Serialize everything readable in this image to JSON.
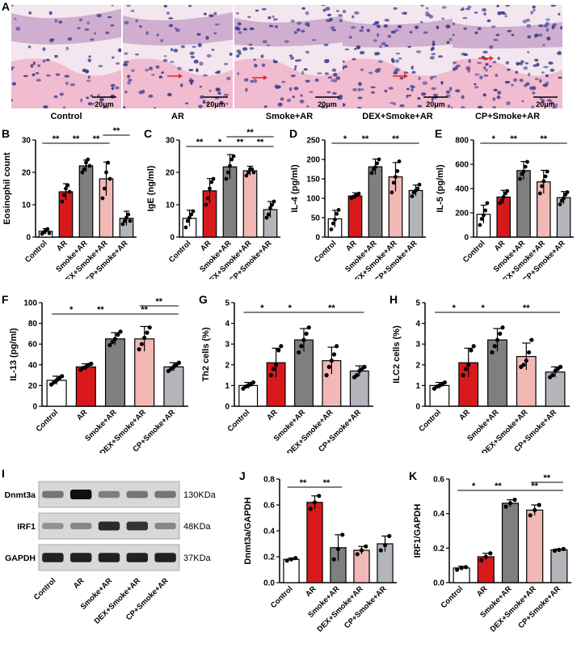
{
  "panel_labels": [
    "A",
    "B",
    "C",
    "D",
    "E",
    "F",
    "G",
    "H",
    "I",
    "J",
    "K"
  ],
  "histology": {
    "scale_label": "20μm",
    "groups": [
      "Control",
      "AR",
      "Smoke+AR",
      "DEX+Smoke+AR",
      "CP+Smoke+AR"
    ]
  },
  "colors": {
    "Control": "#ffffff",
    "AR": "#d7191c",
    "Smoke+AR": "#7f7f7f",
    "DEX+Smoke+AR": "#f2b8b5",
    "CP+Smoke+AR": "#b4b4bb",
    "stain_pink": "#f1b6cc",
    "stain_nuclei": "#3a3f8f"
  },
  "blot": {
    "rows": [
      {
        "name": "Dnmt3a",
        "size": "130KDa"
      },
      {
        "name": "IRF1",
        "size": "48KDa"
      },
      {
        "name": "GAPDH",
        "size": "37KDa"
      }
    ],
    "intensity": [
      [
        0.45,
        1.0,
        0.4,
        0.45,
        0.45
      ],
      [
        0.3,
        0.35,
        0.85,
        0.8,
        0.35
      ],
      [
        0.9,
        0.9,
        0.9,
        0.9,
        0.9
      ]
    ],
    "lanes": [
      "Control",
      "AR",
      "Smoke+AR",
      "DEX+Smoke+AR",
      "CP+Smoke+AR"
    ]
  },
  "chart_data": [
    {
      "id": "B",
      "type": "bar",
      "ylabel": "Eosinophil count",
      "ylim": [
        0,
        30
      ],
      "yticks": [
        0,
        10,
        20,
        30
      ],
      "categories": [
        "Control",
        "AR",
        "Smoke+AR",
        "DEX+Smoke+AR",
        "CP+Smoke+AR"
      ],
      "values": [
        1.8,
        14,
        22,
        18,
        5.8
      ],
      "errors": [
        0.8,
        2.5,
        1.8,
        5.2,
        2.2
      ],
      "points": [
        [
          1,
          1.5,
          2,
          2.5,
          1.2
        ],
        [
          11,
          13,
          15,
          16,
          14
        ],
        [
          20,
          21,
          23,
          24,
          22
        ],
        [
          12,
          15,
          20,
          23,
          18
        ],
        [
          4,
          5,
          6,
          7,
          5
        ]
      ],
      "sig": [
        {
          "a": 0,
          "b": 1,
          "l": 1,
          "t": "**"
        },
        {
          "a": 1,
          "b": 2,
          "l": 1,
          "t": "**"
        },
        {
          "a": 2,
          "b": 3,
          "l": 1,
          "t": "**"
        },
        {
          "a": 3,
          "b": 4,
          "l": 2,
          "t": "**"
        }
      ]
    },
    {
      "id": "C",
      "type": "bar",
      "ylabel": "IgE (ng/ml)",
      "ylim": [
        0,
        30
      ],
      "yticks": [
        0,
        10,
        20,
        30
      ],
      "categories": [
        "Control",
        "AR",
        "Smoke+AR",
        "DEX+Smoke+AR",
        "CP+Smoke+AR"
      ],
      "values": [
        5.8,
        14.3,
        21.7,
        20.5,
        8.5
      ],
      "errors": [
        2.5,
        3.8,
        3.8,
        1.4,
        2.5
      ],
      "points": [
        [
          3,
          5,
          6,
          7,
          8
        ],
        [
          10,
          12,
          15,
          17,
          18
        ],
        [
          18,
          20,
          22,
          24,
          25
        ],
        [
          19,
          20,
          21,
          21,
          20
        ],
        [
          6,
          7,
          9,
          10,
          11
        ]
      ],
      "sig": [
        {
          "a": 0,
          "b": 1,
          "l": 1,
          "t": "**"
        },
        {
          "a": 1,
          "b": 2,
          "l": 1,
          "t": "*"
        },
        {
          "a": 2,
          "b": 3,
          "l": 1,
          "t": "**"
        },
        {
          "a": 2,
          "b": 4,
          "l": 2,
          "t": "**"
        },
        {
          "a": 3,
          "b": 4,
          "l": 1,
          "t": "**"
        }
      ]
    },
    {
      "id": "D",
      "type": "bar",
      "ylabel": "IL-4 (pg/ml)",
      "ylim": [
        0,
        250
      ],
      "yticks": [
        0,
        50,
        100,
        150,
        200,
        250
      ],
      "categories": [
        "Control",
        "AR",
        "Smoke+AR",
        "DEX+Smoke+AR",
        "CP+Smoke+AR"
      ],
      "values": [
        47,
        106,
        181,
        155,
        120
      ],
      "errors": [
        22,
        8,
        20,
        37,
        14
      ],
      "points": [
        [
          20,
          35,
          45,
          60,
          70
        ],
        [
          100,
          104,
          106,
          108,
          112
        ],
        [
          165,
          175,
          180,
          190,
          200
        ],
        [
          115,
          140,
          155,
          170,
          195
        ],
        [
          105,
          115,
          120,
          125,
          135
        ]
      ],
      "sig": [
        {
          "a": 0,
          "b": 1,
          "l": 1,
          "t": "*"
        },
        {
          "a": 1,
          "b": 2,
          "l": 1,
          "t": "**"
        },
        {
          "a": 2,
          "b": 4,
          "l": 1,
          "t": "**"
        }
      ]
    },
    {
      "id": "E",
      "type": "bar",
      "ylabel": "IL-5 (pg/ml)",
      "ylim": [
        0,
        800
      ],
      "yticks": [
        0,
        200,
        400,
        600,
        800
      ],
      "categories": [
        "Control",
        "AR",
        "Smoke+AR",
        "DEX+Smoke+AR",
        "CP+Smoke+AR"
      ],
      "values": [
        188,
        330,
        548,
        455,
        325
      ],
      "errors": [
        75,
        55,
        75,
        95,
        50
      ],
      "points": [
        [
          100,
          150,
          180,
          220,
          280
        ],
        [
          280,
          300,
          330,
          360,
          380
        ],
        [
          480,
          520,
          540,
          580,
          620
        ],
        [
          360,
          420,
          460,
          500,
          540
        ],
        [
          270,
          300,
          320,
          350,
          370
        ]
      ],
      "sig": [
        {
          "a": 0,
          "b": 1,
          "l": 1,
          "t": "*"
        },
        {
          "a": 1,
          "b": 2,
          "l": 1,
          "t": "**"
        },
        {
          "a": 2,
          "b": 4,
          "l": 1,
          "t": "**"
        }
      ]
    },
    {
      "id": "F",
      "type": "bar",
      "ylabel": "IL-13 (pg/ml)",
      "ylim": [
        0,
        100
      ],
      "yticks": [
        0,
        20,
        40,
        60,
        80,
        100
      ],
      "categories": [
        "Control",
        "AR",
        "Smoke+AR",
        "DEX+Smoke+AR",
        "CP+Smoke+AR"
      ],
      "values": [
        25,
        38,
        65,
        65,
        38
      ],
      "errors": [
        4,
        3,
        6,
        12,
        4
      ],
      "points": [
        [
          21,
          23,
          25,
          27,
          29
        ],
        [
          35,
          37,
          38,
          40,
          41
        ],
        [
          59,
          62,
          65,
          69,
          72
        ],
        [
          55,
          60,
          66,
          71,
          76
        ],
        [
          34,
          36,
          38,
          40,
          42
        ]
      ],
      "sig": [
        {
          "a": 0,
          "b": 1,
          "l": 1,
          "t": "*"
        },
        {
          "a": 1,
          "b": 2,
          "l": 1,
          "t": "**"
        },
        {
          "a": 2,
          "b": 4,
          "l": 1,
          "t": "**"
        },
        {
          "a": 3,
          "b": 4,
          "l": 2,
          "t": "**"
        }
      ]
    },
    {
      "id": "G",
      "type": "bar",
      "ylabel": "Th2 cells (%)",
      "ylim": [
        0,
        5
      ],
      "yticks": [
        0,
        1,
        2,
        3,
        4,
        5
      ],
      "categories": [
        "Control",
        "AR",
        "Smoke+AR",
        "DEX+Smoke+AR",
        "CP+Smoke+AR"
      ],
      "values": [
        1.0,
        2.1,
        3.2,
        2.2,
        1.7
      ],
      "errors": [
        0.15,
        0.7,
        0.55,
        0.65,
        0.25
      ],
      "points": [
        [
          0.85,
          0.95,
          1.0,
          1.05,
          1.15
        ],
        [
          1.5,
          1.8,
          2.0,
          2.7,
          2.9
        ],
        [
          2.6,
          2.9,
          3.2,
          3.5,
          3.8
        ],
        [
          1.5,
          1.9,
          2.2,
          2.5,
          2.9
        ],
        [
          1.4,
          1.5,
          1.7,
          1.8,
          1.9
        ]
      ],
      "sig": [
        {
          "a": 0,
          "b": 1,
          "l": 1,
          "t": "*"
        },
        {
          "a": 1,
          "b": 2,
          "l": 1,
          "t": "*"
        },
        {
          "a": 2,
          "b": 4,
          "l": 1,
          "t": "**"
        }
      ]
    },
    {
      "id": "H",
      "type": "bar",
      "ylabel": "ILC2 cells (%)",
      "ylim": [
        0,
        5
      ],
      "yticks": [
        0,
        1,
        2,
        3,
        4,
        5
      ],
      "categories": [
        "Control",
        "AR",
        "Smoke+AR",
        "DEX+Smoke+AR",
        "CP+Smoke+AR"
      ],
      "values": [
        1.0,
        2.1,
        3.2,
        2.4,
        1.65
      ],
      "errors": [
        0.15,
        0.7,
        0.55,
        0.65,
        0.25
      ],
      "points": [
        [
          0.85,
          0.95,
          1.0,
          1.05,
          1.15
        ],
        [
          1.5,
          1.8,
          2.0,
          2.7,
          2.9
        ],
        [
          2.6,
          2.9,
          3.2,
          3.5,
          3.8
        ],
        [
          1.9,
          2.0,
          2.2,
          2.6,
          3.2
        ],
        [
          1.4,
          1.5,
          1.7,
          1.8,
          1.9
        ]
      ],
      "sig": [
        {
          "a": 0,
          "b": 1,
          "l": 1,
          "t": "*"
        },
        {
          "a": 1,
          "b": 2,
          "l": 1,
          "t": "*"
        },
        {
          "a": 2,
          "b": 4,
          "l": 1,
          "t": "**"
        }
      ]
    },
    {
      "id": "J",
      "type": "bar",
      "ylabel": "Dnmt3a/GAPDH",
      "ylim": [
        0,
        0.8
      ],
      "yticks": [
        0.0,
        0.2,
        0.4,
        0.6,
        0.8
      ],
      "categories": [
        "Control",
        "AR",
        "Smoke+AR",
        "DEX+Smoke+AR",
        "CP+Smoke+AR"
      ],
      "values": [
        0.18,
        0.62,
        0.27,
        0.25,
        0.3
      ],
      "errors": [
        0.01,
        0.05,
        0.1,
        0.03,
        0.06
      ],
      "points": [
        [
          0.17,
          0.18,
          0.19
        ],
        [
          0.57,
          0.62,
          0.67
        ],
        [
          0.18,
          0.26,
          0.37
        ],
        [
          0.22,
          0.25,
          0.28
        ],
        [
          0.25,
          0.29,
          0.36
        ]
      ],
      "sig": [
        {
          "a": 0,
          "b": 1,
          "l": 1,
          "t": "**"
        },
        {
          "a": 1,
          "b": 2,
          "l": 1,
          "t": "**"
        }
      ]
    },
    {
      "id": "K",
      "type": "bar",
      "ylabel": "IRF1/GAPDH",
      "ylim": [
        0,
        0.6
      ],
      "yticks": [
        0.0,
        0.2,
        0.4,
        0.6
      ],
      "categories": [
        "Control",
        "AR",
        "Smoke+AR",
        "DEX+Smoke+AR",
        "CP+Smoke+AR"
      ],
      "values": [
        0.085,
        0.15,
        0.46,
        0.42,
        0.19
      ],
      "errors": [
        0.01,
        0.02,
        0.02,
        0.03,
        0.005
      ],
      "points": [
        [
          0.075,
          0.085,
          0.09
        ],
        [
          0.13,
          0.15,
          0.17
        ],
        [
          0.44,
          0.46,
          0.48
        ],
        [
          0.39,
          0.42,
          0.45
        ],
        [
          0.185,
          0.19,
          0.195
        ]
      ],
      "sig": [
        {
          "a": 0,
          "b": 1,
          "l": 1,
          "t": "*"
        },
        {
          "a": 1,
          "b": 2,
          "l": 1,
          "t": "**"
        },
        {
          "a": 2,
          "b": 4,
          "l": 1,
          "t": "**"
        },
        {
          "a": 3,
          "b": 4,
          "l": 2,
          "t": "**"
        }
      ]
    }
  ]
}
